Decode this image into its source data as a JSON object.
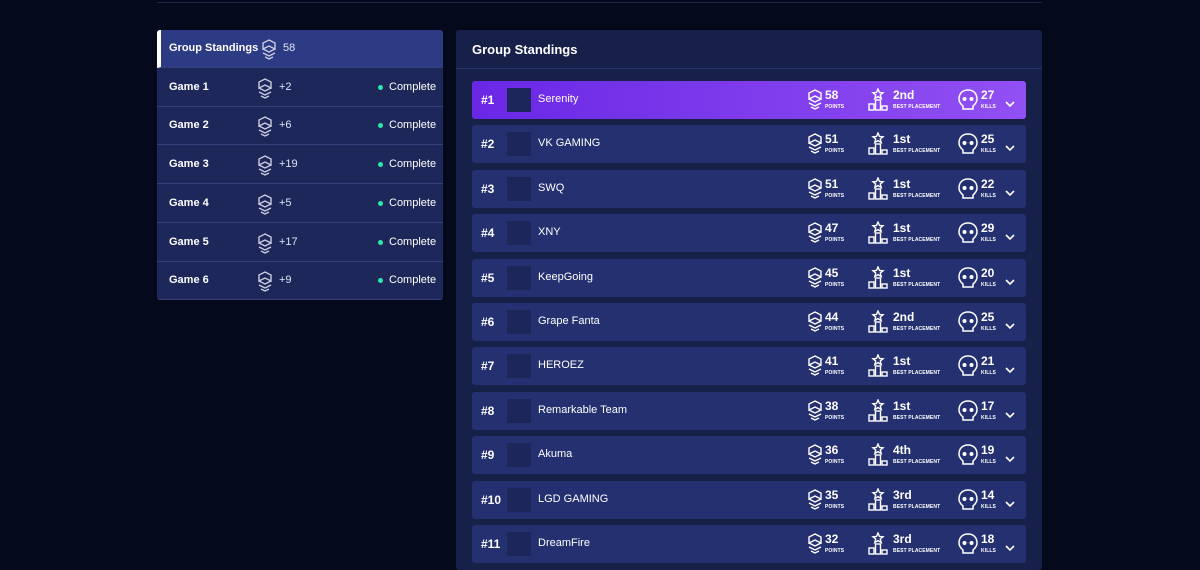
{
  "sidebar": {
    "items": [
      {
        "label": "Group Standings",
        "score": "58"
      },
      {
        "label": "Game 1",
        "score": "+2",
        "status": "Complete"
      },
      {
        "label": "Game 2",
        "score": "+6",
        "status": "Complete"
      },
      {
        "label": "Game 3",
        "score": "+19",
        "status": "Complete"
      },
      {
        "label": "Game 4",
        "score": "+5",
        "status": "Complete"
      },
      {
        "label": "Game 5",
        "score": "+17",
        "status": "Complete"
      },
      {
        "label": "Game 6",
        "score": "+9",
        "status": "Complete"
      }
    ]
  },
  "standings": {
    "title": "Group Standings",
    "labels": {
      "points": "POINTS",
      "placement": "BEST PLACEMENT",
      "kills": "KILLS"
    },
    "rows": [
      {
        "rank": "#1",
        "team": "Serenity",
        "points": 58,
        "placement": "2nd",
        "kills": 27
      },
      {
        "rank": "#2",
        "team": "VK GAMING",
        "points": 51,
        "placement": "1st",
        "kills": 25
      },
      {
        "rank": "#3",
        "team": "SWQ",
        "points": 51,
        "placement": "1st",
        "kills": 22
      },
      {
        "rank": "#4",
        "team": "XNY",
        "points": 47,
        "placement": "1st",
        "kills": 29
      },
      {
        "rank": "#5",
        "team": "KeepGoing",
        "points": 45,
        "placement": "1st",
        "kills": 20
      },
      {
        "rank": "#6",
        "team": "Grape Fanta",
        "points": 44,
        "placement": "2nd",
        "kills": 25
      },
      {
        "rank": "#7",
        "team": "HEROEZ",
        "points": 41,
        "placement": "1st",
        "kills": 21
      },
      {
        "rank": "#8",
        "team": "Remarkable Team",
        "points": 38,
        "placement": "1st",
        "kills": 17
      },
      {
        "rank": "#9",
        "team": "Akuma",
        "points": 36,
        "placement": "4th",
        "kills": 19
      },
      {
        "rank": "#10",
        "team": "LGD GAMING",
        "points": 35,
        "placement": "3rd",
        "kills": 14
      },
      {
        "rank": "#11",
        "team": "DreamFire",
        "points": 32,
        "placement": "3rd",
        "kills": 18
      }
    ]
  }
}
